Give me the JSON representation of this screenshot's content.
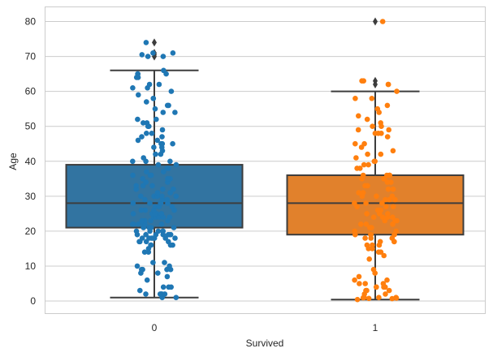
{
  "chart_data": {
    "type": "box+strip",
    "xlabel": "Survived",
    "ylabel": "Age",
    "ylim": [
      -3.7,
      84
    ],
    "yticks": [
      0,
      10,
      20,
      30,
      40,
      50,
      60,
      70,
      80
    ],
    "grid": true,
    "categories": [
      "0",
      "1"
    ],
    "colors": [
      "#1f77b4",
      "#ff7f0e"
    ],
    "box_colors": [
      "#3274a1",
      "#e1812c"
    ],
    "boxes": [
      {
        "category": "0",
        "whisker_low": 1,
        "q1": 21,
        "median": 28,
        "q3": 39,
        "whisker_high": 66,
        "outliers": [
          70,
          70.5,
          71,
          74
        ]
      },
      {
        "category": "1",
        "whisker_low": 0.42,
        "q1": 19,
        "median": 28,
        "q3": 36,
        "whisker_high": 60,
        "outliers": [
          62,
          63,
          80
        ]
      }
    ],
    "points": [
      [
        2,
        2,
        2,
        1,
        1,
        2,
        3,
        4,
        4,
        4,
        2,
        6,
        7,
        8,
        8,
        9,
        9,
        9,
        9,
        10,
        10,
        11,
        11,
        14,
        14,
        15,
        16,
        16,
        16,
        16,
        17,
        17,
        17,
        17,
        18,
        18,
        18,
        18,
        18,
        18,
        18,
        19,
        19,
        19,
        19,
        19,
        19,
        19,
        20,
        20,
        20,
        20,
        20,
        21,
        21,
        21,
        21,
        21,
        21,
        22,
        22,
        22,
        22,
        22,
        22,
        23,
        23,
        23,
        23,
        24,
        24,
        24,
        24,
        24,
        25,
        25,
        25,
        25,
        25,
        26,
        26,
        26,
        26,
        27,
        27,
        27,
        28,
        28,
        28,
        28,
        28,
        29,
        29,
        29,
        30,
        30,
        30,
        30,
        30,
        31,
        31,
        32,
        32,
        32,
        33,
        33,
        33,
        34,
        34,
        35,
        35,
        35,
        36,
        36,
        36,
        37,
        37,
        38,
        38,
        39,
        39,
        40,
        40,
        40,
        41,
        42,
        42,
        43,
        44,
        44,
        45,
        45,
        45,
        46,
        46,
        47,
        47,
        48,
        48,
        49,
        50,
        50,
        51,
        51,
        52,
        52,
        54,
        54,
        55,
        56,
        56,
        57,
        58,
        58,
        59,
        60,
        61,
        61,
        62,
        62,
        64,
        64,
        65,
        65,
        65,
        66,
        70,
        70,
        70.5,
        71,
        71,
        74
      ],
      [
        0.42,
        0.67,
        0.75,
        0.83,
        0.92,
        1,
        1,
        1,
        2,
        2,
        3,
        3,
        3,
        4,
        4,
        4,
        4,
        5,
        5,
        5,
        6,
        6,
        7,
        8,
        9,
        12,
        13,
        14,
        14,
        15,
        15,
        16,
        16,
        16,
        17,
        17,
        17,
        18,
        18,
        18,
        19,
        19,
        19,
        19,
        20,
        20,
        21,
        21,
        22,
        22,
        22,
        23,
        23,
        23,
        24,
        24,
        24,
        24,
        25,
        25,
        25,
        26,
        26,
        27,
        27,
        27,
        28,
        28,
        28,
        29,
        29,
        29,
        30,
        30,
        30,
        31,
        31,
        32,
        32,
        33,
        33,
        34,
        34,
        35,
        35,
        35,
        36,
        36,
        36,
        36,
        38,
        38,
        39,
        39,
        40,
        40,
        41,
        42,
        42,
        43,
        44,
        45,
        45,
        47,
        48,
        48,
        48,
        49,
        49,
        50,
        50,
        51,
        52,
        53,
        54,
        55,
        56,
        58,
        58,
        60,
        62,
        62,
        63,
        63,
        80
      ]
    ]
  }
}
